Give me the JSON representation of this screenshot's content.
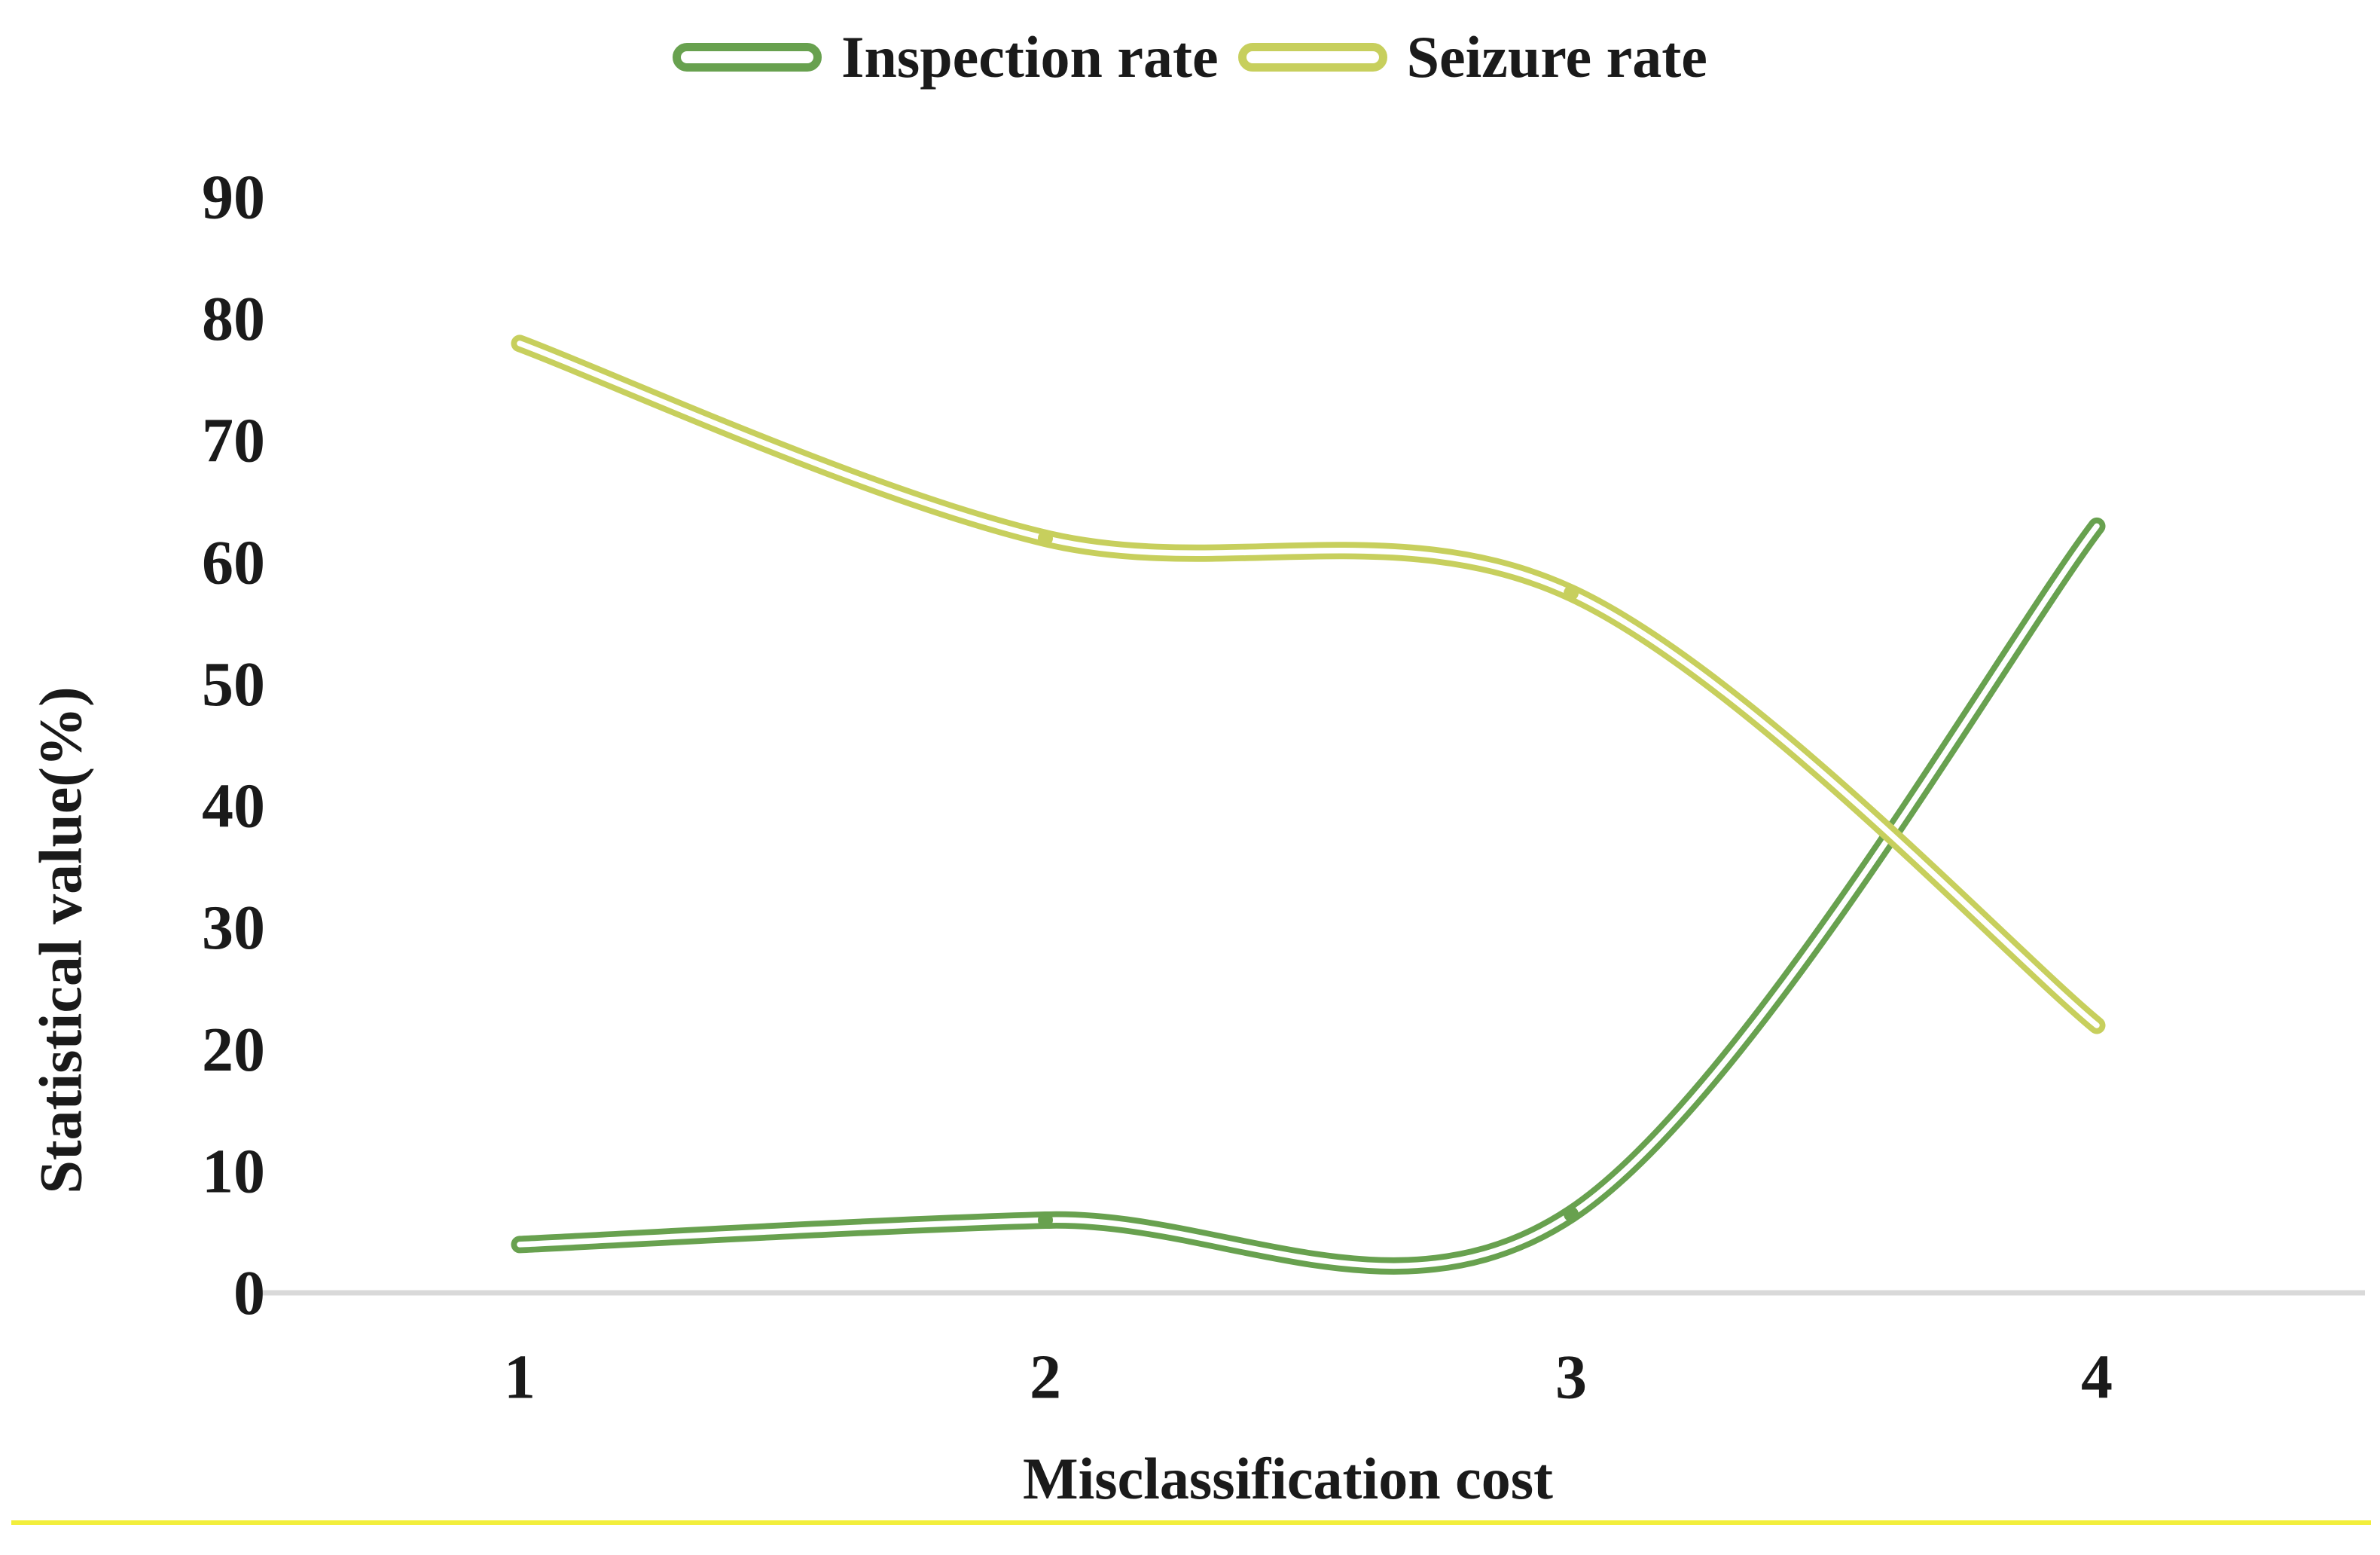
{
  "chart_data": {
    "type": "line",
    "categories": [
      "1",
      "2",
      "3",
      "4"
    ],
    "series": [
      {
        "name": "Inspection rate",
        "color": "#68a14f",
        "values": [
          4,
          6,
          6.5,
          63
        ]
      },
      {
        "name": "Seizure rate",
        "color": "#c7cf5d",
        "values": [
          78,
          62,
          57.5,
          22
        ]
      }
    ],
    "title": "",
    "xlabel": "Misclassification cost",
    "ylabel": "Statistical value(%)",
    "ylim": [
      0,
      90
    ],
    "yticks": [
      0,
      10,
      20,
      30,
      40,
      50,
      60,
      70,
      80,
      90
    ],
    "grid": false,
    "legend_position": "top-center",
    "smooth": true,
    "line_style": "thick tube with white core and rounded caps",
    "axis_line_color": "#d9d9d9",
    "bottom_rule_color": "#f2ee3c",
    "text_color": "#1a1a1a"
  }
}
